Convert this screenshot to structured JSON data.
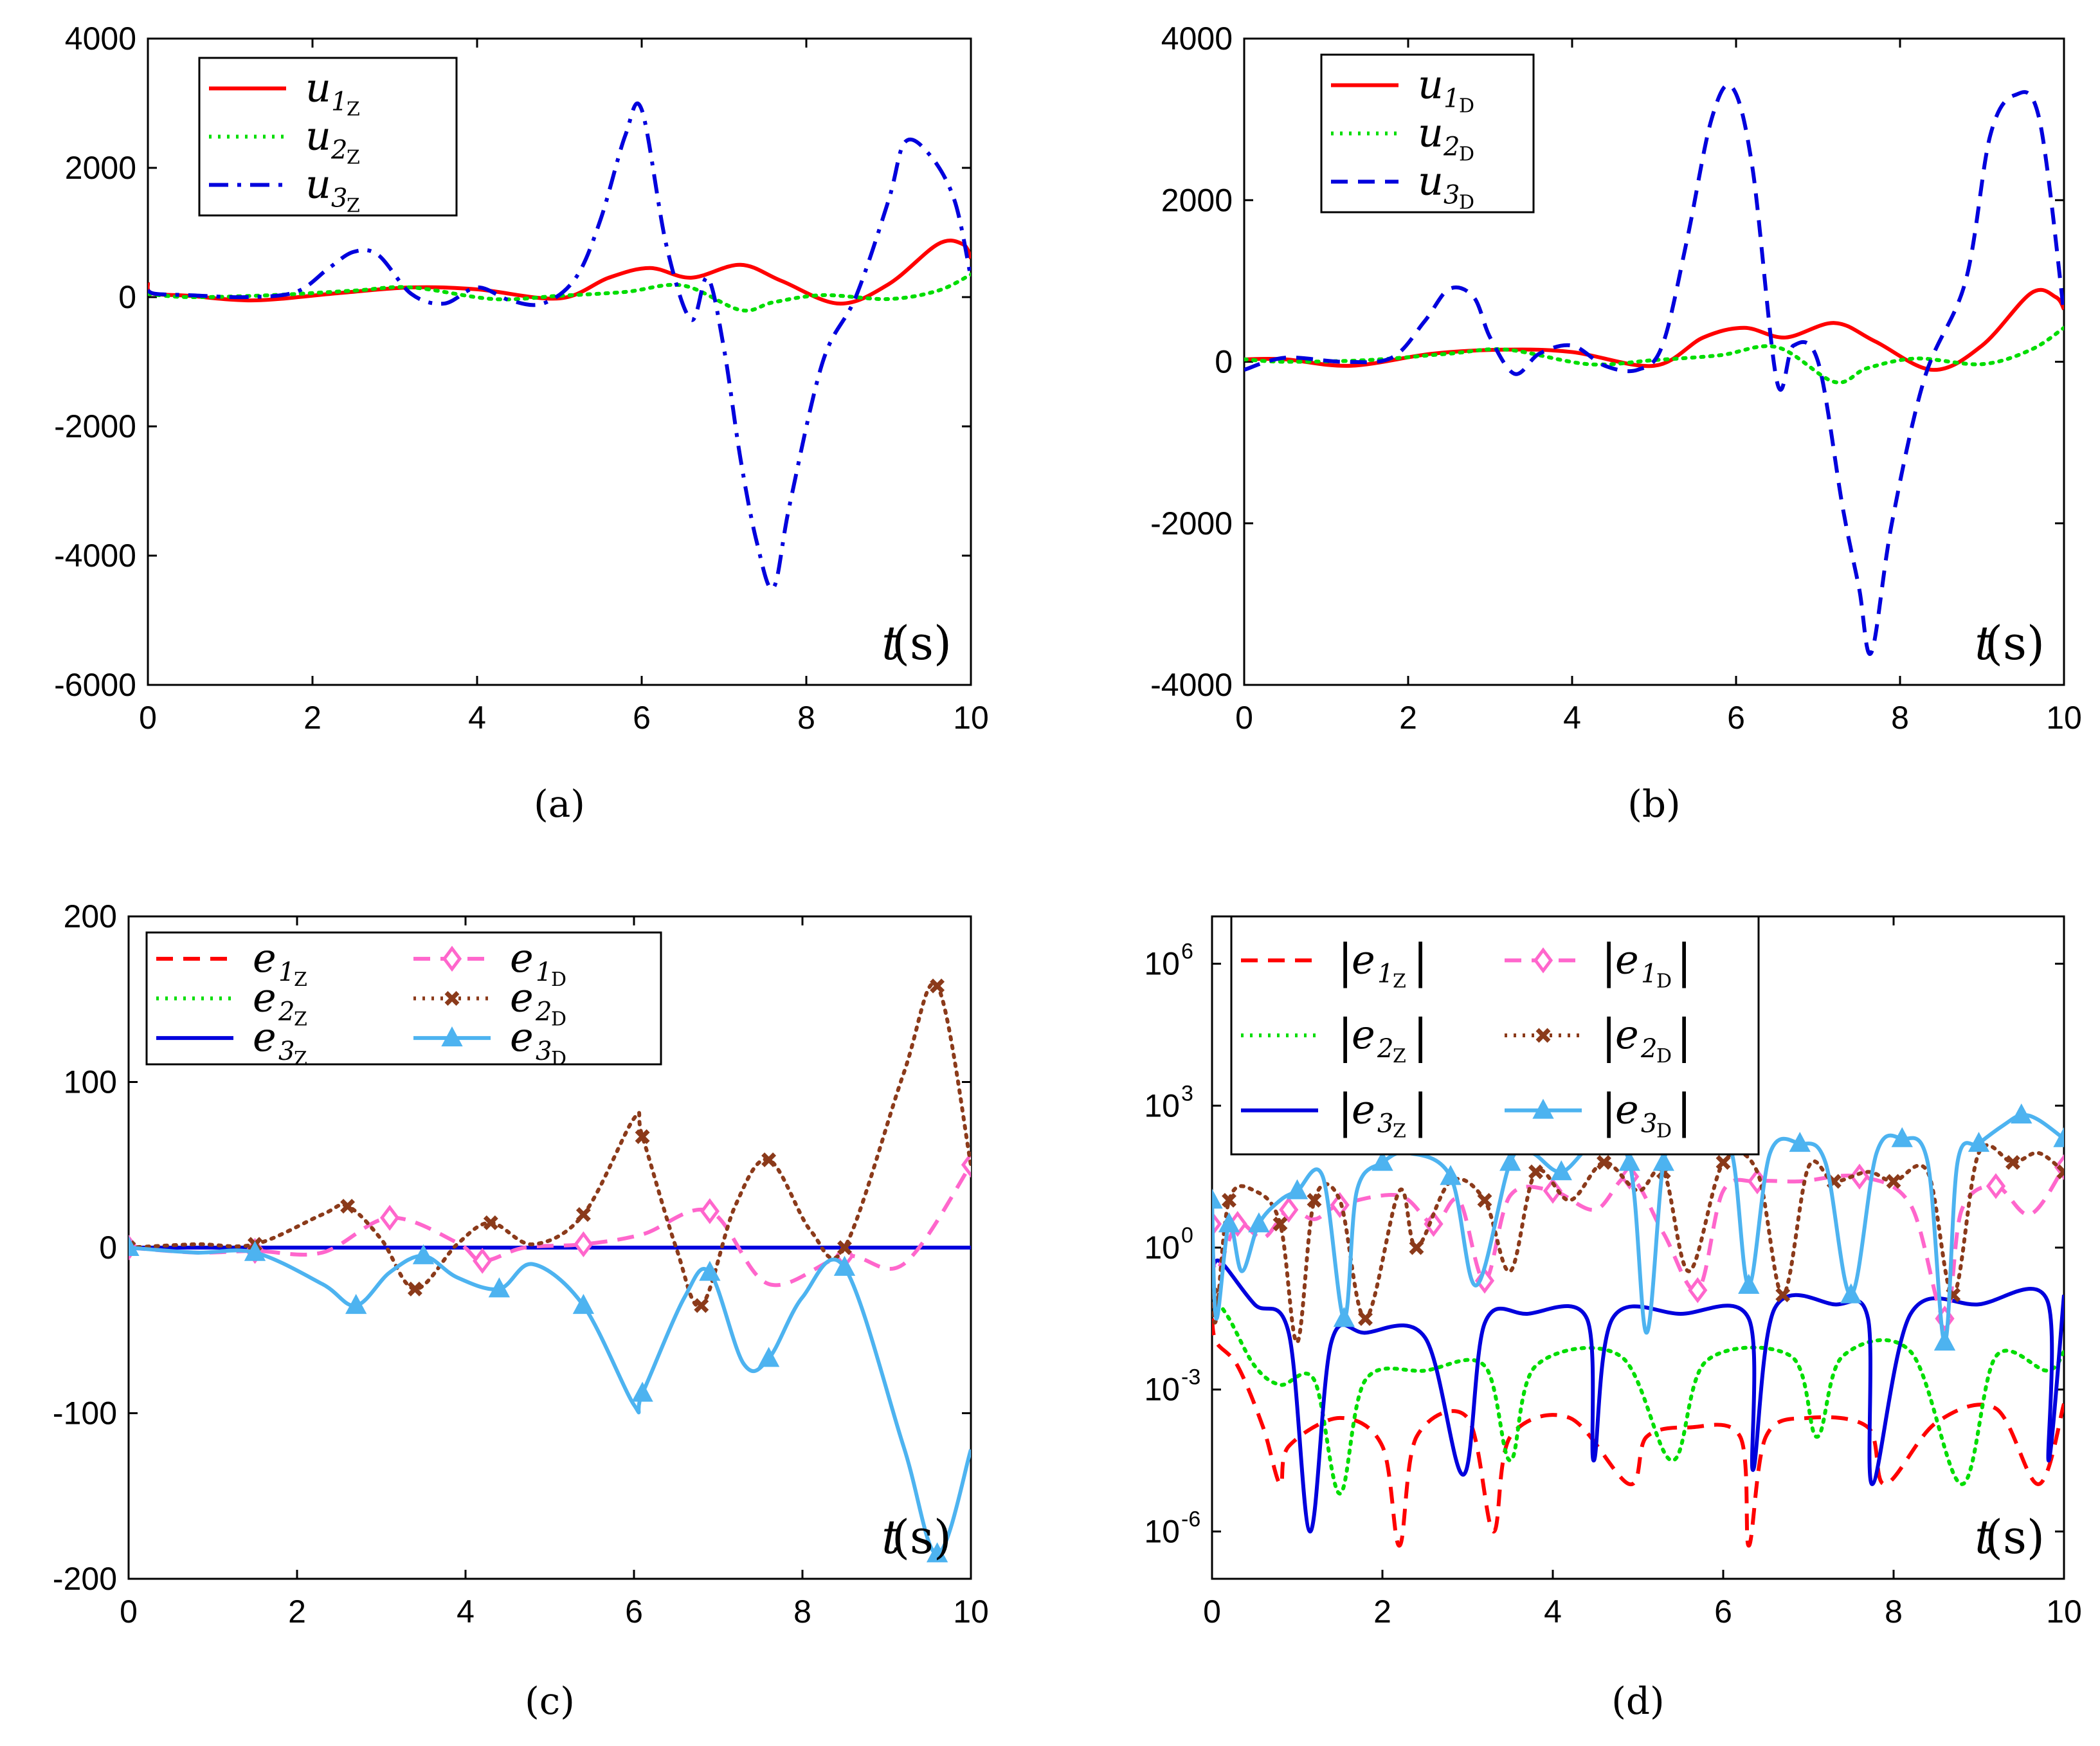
{
  "chart_data": [
    {
      "type": "line",
      "id": "a",
      "caption": "(a)",
      "xlabel": "t",
      "xunit": "(s)",
      "xlim": [
        0,
        10
      ],
      "ylim": [
        -6000,
        4000
      ],
      "xticks": [
        "0",
        "2",
        "4",
        "6",
        "8",
        "10"
      ],
      "yticks": [
        "-6000",
        "-4000",
        "-2000",
        "0",
        "2000",
        "4000"
      ],
      "ytick_values": [
        -6000,
        -4000,
        -2000,
        0,
        2000,
        4000
      ],
      "xtick_values": [
        0,
        2,
        4,
        6,
        8,
        10
      ],
      "legend": {
        "position": "top-left"
      },
      "series": [
        {
          "name": "u",
          "sub": "1",
          "subsub": "Z",
          "color": "#ff0000",
          "dash": "solid",
          "x": [
            0,
            0.05,
            0.5,
            1.3,
            2.3,
            3.2,
            4.0,
            5.0,
            5.6,
            6.1,
            6.6,
            7.2,
            7.7,
            8.4,
            9.0,
            9.6,
            9.9,
            10
          ],
          "y": [
            220,
            60,
            20,
            -50,
            60,
            150,
            120,
            -20,
            300,
            450,
            300,
            500,
            250,
            -100,
            200,
            820,
            820,
            600
          ]
        },
        {
          "name": "u",
          "sub": "2",
          "subsub": "Z",
          "color": "#00dd00",
          "dash": "dot",
          "x": [
            0,
            0.5,
            1.5,
            2.5,
            3.2,
            4.2,
            5.0,
            5.8,
            6.5,
            7.2,
            7.6,
            8.2,
            9.0,
            9.6,
            10
          ],
          "y": [
            50,
            0,
            30,
            100,
            150,
            -30,
            20,
            80,
            180,
            -200,
            -80,
            30,
            -30,
            100,
            350
          ]
        },
        {
          "name": "u",
          "sub": "3",
          "subsub": "Z",
          "color": "#0000dd",
          "dash": "dashdot",
          "x": [
            0,
            0.1,
            0.5,
            1.2,
            1.8,
            2.2,
            2.5,
            2.8,
            3.2,
            3.6,
            4.0,
            4.4,
            4.8,
            5.2,
            5.5,
            5.8,
            6.0,
            6.3,
            6.6,
            6.8,
            7.0,
            7.2,
            7.4,
            7.6,
            7.8,
            8.2,
            8.6,
            9.0,
            9.2,
            9.5,
            9.8,
            10
          ],
          "y": [
            100,
            50,
            30,
            0,
            80,
            450,
            700,
            650,
            50,
            -100,
            150,
            -50,
            -100,
            300,
            1200,
            2500,
            2900,
            800,
            -350,
            300,
            -800,
            -2500,
            -3800,
            -4500,
            -3200,
            -1000,
            0,
            1500,
            2400,
            2200,
            1500,
            300
          ]
        }
      ]
    },
    {
      "type": "line",
      "id": "b",
      "caption": "(b)",
      "xlabel": "t",
      "xunit": "(s)",
      "xlim": [
        0,
        10
      ],
      "ylim": [
        -4000,
        4000
      ],
      "xticks": [
        "0",
        "2",
        "4",
        "6",
        "8",
        "10"
      ],
      "yticks": [
        "-4000",
        "-2000",
        "0",
        "2000",
        "4000"
      ],
      "ytick_values": [
        -4000,
        -2000,
        0,
        2000,
        4000
      ],
      "xtick_values": [
        0,
        2,
        4,
        6,
        8,
        10
      ],
      "legend": {
        "position": "top-left"
      },
      "series": [
        {
          "name": "u",
          "sub": "1",
          "subsub": "D",
          "color": "#ff0000",
          "dash": "solid",
          "x": [
            0,
            0.5,
            1.3,
            2.3,
            3.2,
            4.0,
            5.0,
            5.6,
            6.1,
            6.6,
            7.2,
            7.7,
            8.4,
            9.0,
            9.6,
            9.9,
            10
          ],
          "y": [
            30,
            30,
            -50,
            100,
            150,
            120,
            -50,
            300,
            420,
            300,
            480,
            250,
            -100,
            200,
            850,
            800,
            650
          ]
        },
        {
          "name": "u",
          "sub": "2",
          "subsub": "D",
          "color": "#00dd00",
          "dash": "dot",
          "x": [
            0,
            0.5,
            1.5,
            2.5,
            3.2,
            4.2,
            5.0,
            5.8,
            6.5,
            7.2,
            7.6,
            8.2,
            9.0,
            9.6,
            10
          ],
          "y": [
            30,
            0,
            20,
            100,
            150,
            -30,
            20,
            80,
            180,
            -250,
            -80,
            40,
            -30,
            150,
            420
          ]
        },
        {
          "name": "u",
          "sub": "3",
          "subsub": "D",
          "color": "#0000dd",
          "dash": "dash",
          "x": [
            0,
            0.5,
            1.2,
            1.8,
            2.2,
            2.5,
            2.8,
            3.0,
            3.3,
            3.6,
            4.0,
            4.4,
            4.8,
            5.1,
            5.4,
            5.7,
            5.95,
            6.2,
            6.5,
            6.7,
            7.0,
            7.3,
            7.5,
            7.65,
            7.9,
            8.3,
            8.8,
            9.1,
            9.4,
            9.7,
            10
          ],
          "y": [
            -100,
            50,
            0,
            50,
            500,
            900,
            800,
            300,
            -150,
            100,
            200,
            -50,
            -100,
            200,
            1500,
            3000,
            3400,
            2400,
            -250,
            200,
            0,
            -1800,
            -2800,
            -3600,
            -2000,
            -200,
            1000,
            2800,
            3300,
            3000,
            600
          ]
        }
      ]
    },
    {
      "type": "line",
      "id": "c",
      "caption": "(c)",
      "xlabel": "t",
      "xunit": "(s)",
      "xlim": [
        0,
        10
      ],
      "ylim": [
        -200,
        200
      ],
      "xticks": [
        "0",
        "2",
        "4",
        "6",
        "8",
        "10"
      ],
      "yticks": [
        "-200",
        "-100",
        "0",
        "100",
        "200"
      ],
      "ytick_values": [
        -200,
        -100,
        0,
        100,
        200
      ],
      "xtick_values": [
        0,
        2,
        4,
        6,
        8,
        10
      ],
      "legend": {
        "position": "top-left",
        "columns": 2
      },
      "series": [
        {
          "name": "e",
          "sub": "1",
          "subsub": "Z",
          "color": "#ff0000",
          "dash": "dash",
          "x": [
            0,
            10
          ],
          "y": [
            0,
            0
          ]
        },
        {
          "name": "e",
          "sub": "2",
          "subsub": "Z",
          "color": "#00dd00",
          "dash": "dot",
          "x": [
            0,
            10
          ],
          "y": [
            0,
            0
          ]
        },
        {
          "name": "e",
          "sub": "3",
          "subsub": "Z",
          "color": "#0000dd",
          "dash": "solid",
          "x": [
            0,
            10
          ],
          "y": [
            0,
            0
          ]
        },
        {
          "name": "e",
          "sub": "1",
          "subsub": "D",
          "color": "#ff66cc",
          "dash": "dash",
          "marker": "diamond",
          "x": [
            0,
            0.8,
            1.5,
            2.3,
            3.1,
            3.9,
            4.2,
            4.7,
            5.4,
            6.1,
            6.9,
            7.6,
            8.5,
            9.2,
            10
          ],
          "y": [
            0,
            -3,
            -2,
            -3,
            18,
            3,
            -8,
            0,
            2,
            8,
            22,
            -22,
            -5,
            -10,
            50
          ]
        },
        {
          "name": "e",
          "sub": "2",
          "subsub": "D",
          "color": "#8b3a1a",
          "dash": "dot",
          "marker": "cross",
          "x": [
            0,
            0.8,
            1.5,
            2.3,
            2.6,
            3.0,
            3.4,
            3.9,
            4.3,
            4.8,
            5.4,
            6.0,
            6.1,
            6.5,
            6.8,
            7.2,
            7.6,
            8.1,
            8.5,
            9.2,
            9.6,
            10
          ],
          "y": [
            0,
            2,
            2,
            20,
            25,
            5,
            -25,
            2,
            15,
            2,
            20,
            78,
            67,
            0,
            -35,
            25,
            53,
            10,
            0,
            105,
            158,
            50
          ]
        },
        {
          "name": "e",
          "sub": "3",
          "subsub": "D",
          "color": "#4db3f0",
          "dash": "solid",
          "marker": "triangle",
          "x": [
            0,
            0.8,
            1.5,
            2.3,
            2.7,
            3.1,
            3.5,
            3.9,
            4.4,
            4.8,
            5.4,
            6.0,
            6.1,
            6.6,
            6.9,
            7.3,
            7.6,
            8.0,
            8.5,
            9.2,
            9.6,
            10
          ],
          "y": [
            0,
            -3,
            -3,
            -22,
            -35,
            -15,
            -5,
            -18,
            -25,
            -10,
            -35,
            -95,
            -88,
            -30,
            -15,
            -70,
            -67,
            -30,
            -12,
            -120,
            -185,
            -122
          ]
        }
      ]
    },
    {
      "type": "line",
      "id": "d",
      "caption": "(d)",
      "xlabel": "t",
      "xunit": "(s)",
      "xlim": [
        0,
        10
      ],
      "yscale": "log",
      "ylim_log10": [
        -7,
        7
      ],
      "xticks": [
        "0",
        "2",
        "4",
        "6",
        "8",
        "10"
      ],
      "yticks": [
        "10",
        "10",
        "10",
        "10"
      ],
      "ytick_exponents": [
        "-6",
        "-3",
        "0",
        "3",
        "6"
      ],
      "ytick_values_log10": [
        -6,
        -3,
        0,
        3,
        6
      ],
      "xtick_values": [
        0,
        2,
        4,
        6,
        8,
        10
      ],
      "legend": {
        "position": "top-left",
        "columns": 2,
        "abs": true
      },
      "series": [
        {
          "name": "e",
          "sub": "1",
          "subsub": "Z",
          "color": "#ff0000",
          "dash": "dash",
          "x": [
            0,
            0.05,
            0.3,
            0.6,
            0.8,
            0.9,
            1.5,
            2.0,
            2.2,
            2.4,
            3.0,
            3.3,
            3.5,
            4.2,
            4.9,
            5.1,
            5.6,
            6.2,
            6.3,
            6.5,
            7.0,
            7.7,
            7.9,
            8.5,
            9.2,
            9.7,
            10
          ],
          "y_log10": [
            -1.5,
            -2.0,
            -2.5,
            -3.8,
            -5.0,
            -4.2,
            -3.6,
            -4.2,
            -6.3,
            -4.0,
            -3.6,
            -6.0,
            -4.0,
            -3.6,
            -5.0,
            -4.0,
            -3.8,
            -4.0,
            -6.3,
            -4.0,
            -3.6,
            -3.8,
            -5.0,
            -3.7,
            -3.4,
            -5.0,
            -3.3
          ]
        },
        {
          "name": "e",
          "sub": "2",
          "subsub": "Z",
          "color": "#00dd00",
          "dash": "dot",
          "x": [
            0,
            0.2,
            0.5,
            0.8,
            1.2,
            1.5,
            1.8,
            2.5,
            3.2,
            3.5,
            3.8,
            4.8,
            5.4,
            5.8,
            6.8,
            7.1,
            7.4,
            8.2,
            8.8,
            9.2,
            9.8,
            10
          ],
          "y_log10": [
            -1.0,
            -1.5,
            -2.5,
            -2.9,
            -2.8,
            -5.2,
            -2.8,
            -2.6,
            -2.5,
            -4.5,
            -2.5,
            -2.3,
            -4.5,
            -2.4,
            -2.3,
            -4.0,
            -2.3,
            -2.2,
            -5.0,
            -2.3,
            -2.6,
            -2.2
          ]
        },
        {
          "name": "e",
          "sub": "3",
          "subsub": "Z",
          "color": "#0000dd",
          "dash": "solid",
          "x": [
            0,
            0.1,
            0.5,
            0.9,
            1.15,
            1.4,
            1.8,
            2.5,
            2.95,
            3.2,
            3.7,
            4.4,
            4.48,
            4.7,
            5.5,
            6.3,
            6.35,
            6.6,
            7.3,
            7.7,
            7.75,
            8.2,
            9.0,
            9.8,
            9.82,
            10
          ],
          "y_log10": [
            -0.5,
            -0.3,
            -1.2,
            -1.8,
            -6.0,
            -2.0,
            -1.8,
            -1.9,
            -4.8,
            -1.6,
            -1.4,
            -1.5,
            -4.5,
            -1.5,
            -1.4,
            -1.5,
            -4.7,
            -1.3,
            -1.2,
            -1.5,
            -5.0,
            -1.4,
            -1.2,
            -1.1,
            -4.5,
            -1.0
          ]
        },
        {
          "name": "e",
          "sub": "1",
          "subsub": "D",
          "color": "#ff66cc",
          "dash": "dash",
          "marker": "diamond",
          "x": [
            0,
            0.05,
            0.3,
            0.6,
            0.9,
            1.2,
            1.5,
            2.2,
            2.6,
            2.9,
            3.2,
            3.5,
            4.0,
            4.5,
            4.9,
            5.3,
            5.7,
            6.0,
            6.4,
            6.9,
            7.6,
            8.2,
            8.6,
            8.8,
            9.2,
            9.6,
            10
          ],
          "y_log10": [
            0.5,
            -0.5,
            0.5,
            0.2,
            0.8,
            0.6,
            0.9,
            1.1,
            0.5,
            1.0,
            -0.7,
            1.1,
            1.2,
            0.8,
            1.5,
            0.3,
            -0.9,
            1.2,
            1.4,
            1.4,
            1.5,
            0.9,
            -1.5,
            0.8,
            1.3,
            0.7,
            1.7
          ]
        },
        {
          "name": "e",
          "sub": "2",
          "subsub": "D",
          "color": "#8b3a1a",
          "dash": "dot",
          "marker": "cross",
          "x": [
            0,
            0.05,
            0.2,
            0.5,
            0.8,
            1.0,
            1.2,
            1.5,
            1.8,
            2.2,
            2.4,
            2.8,
            3.2,
            3.5,
            3.8,
            4.2,
            4.6,
            5.0,
            5.3,
            5.6,
            6.0,
            6.4,
            6.7,
            7.0,
            7.3,
            7.7,
            8.0,
            8.4,
            8.7,
            9.0,
            9.4,
            9.7,
            10
          ],
          "y_log10": [
            -1.0,
            -1.5,
            1.0,
            1.2,
            0.5,
            -2.0,
            1.0,
            1.0,
            -1.5,
            1.2,
            0.0,
            1.4,
            1.0,
            -0.5,
            1.6,
            1.0,
            1.8,
            1.2,
            1.6,
            -0.5,
            1.8,
            1.6,
            -1.0,
            1.7,
            1.4,
            1.6,
            1.4,
            1.6,
            -1.0,
            2.0,
            1.8,
            2.0,
            1.6
          ]
        },
        {
          "name": "e",
          "sub": "3",
          "subsub": "D",
          "color": "#4db3f0",
          "dash": "solid",
          "marker": "triangle",
          "x": [
            0,
            0.05,
            0.2,
            0.35,
            0.55,
            0.8,
            1.0,
            1.3,
            1.55,
            1.7,
            2.0,
            2.3,
            2.8,
            3.1,
            3.5,
            3.75,
            4.1,
            4.5,
            4.9,
            5.1,
            5.3,
            5.5,
            5.8,
            6.1,
            6.3,
            6.55,
            6.9,
            7.2,
            7.5,
            7.8,
            8.1,
            8.4,
            8.6,
            8.75,
            9.0,
            9.3,
            9.5,
            9.7,
            10
          ],
          "y_log10": [
            1.0,
            -1.5,
            0.5,
            -0.5,
            0.5,
            1.0,
            1.2,
            1.5,
            -1.5,
            1.2,
            1.8,
            2.0,
            1.5,
            -0.8,
            1.8,
            2.0,
            1.6,
            2.2,
            1.8,
            -1.8,
            1.8,
            2.0,
            2.2,
            2.0,
            -0.8,
            2.0,
            2.2,
            1.8,
            -1.0,
            2.0,
            2.3,
            1.8,
            -2.0,
            1.8,
            2.2,
            2.6,
            2.8,
            2.7,
            2.3
          ]
        }
      ]
    }
  ]
}
